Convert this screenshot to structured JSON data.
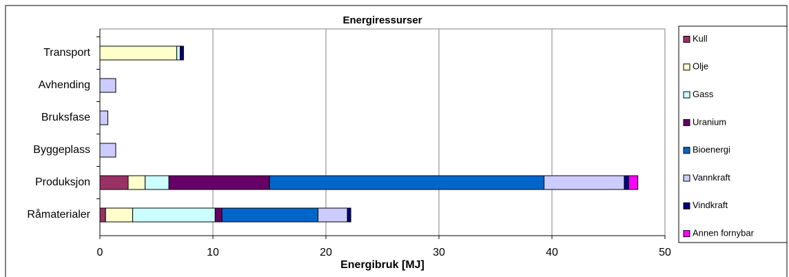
{
  "chart_data": {
    "type": "stacked-bar-horizontal",
    "title": "Energiressurser",
    "x_label": "Energibruk [MJ]",
    "categories": [
      "Transport",
      "Avhending",
      "Bruksfase",
      "Byggeplass",
      "Produksjon",
      "Råmaterialer"
    ],
    "series": [
      {
        "name": "Kull",
        "color": "#993366",
        "values": [
          0,
          0,
          0,
          0,
          2.5,
          0.5
        ]
      },
      {
        "name": "Olje",
        "color": "#ffffcc",
        "values": [
          6.8,
          0,
          0,
          0,
          1.5,
          2.4
        ]
      },
      {
        "name": "Gass",
        "color": "#ccffff",
        "values": [
          0.3,
          0,
          0,
          0,
          2.1,
          7.3
        ]
      },
      {
        "name": "Uranium",
        "color": "#660066",
        "values": [
          0,
          0,
          0,
          0,
          8.9,
          0.6
        ]
      },
      {
        "name": "Bioenergi",
        "color": "#0066cc",
        "values": [
          0,
          0,
          0,
          0,
          24.3,
          8.5
        ]
      },
      {
        "name": "Vannkraft",
        "color": "#ccccff",
        "values": [
          0,
          1.4,
          0.7,
          1.4,
          7.1,
          2.6
        ]
      },
      {
        "name": "Vindkraft",
        "color": "#000080",
        "values": [
          0.3,
          0,
          0,
          0,
          0.4,
          0.3
        ]
      },
      {
        "name": "Annen fornybar",
        "color": "#ff00ff",
        "values": [
          0,
          0,
          0,
          0,
          0.8,
          0
        ]
      }
    ],
    "xlim": [
      0,
      50
    ],
    "xticks": [
      0,
      10,
      20,
      30,
      40,
      50
    ],
    "grid": true,
    "legend": "right"
  }
}
